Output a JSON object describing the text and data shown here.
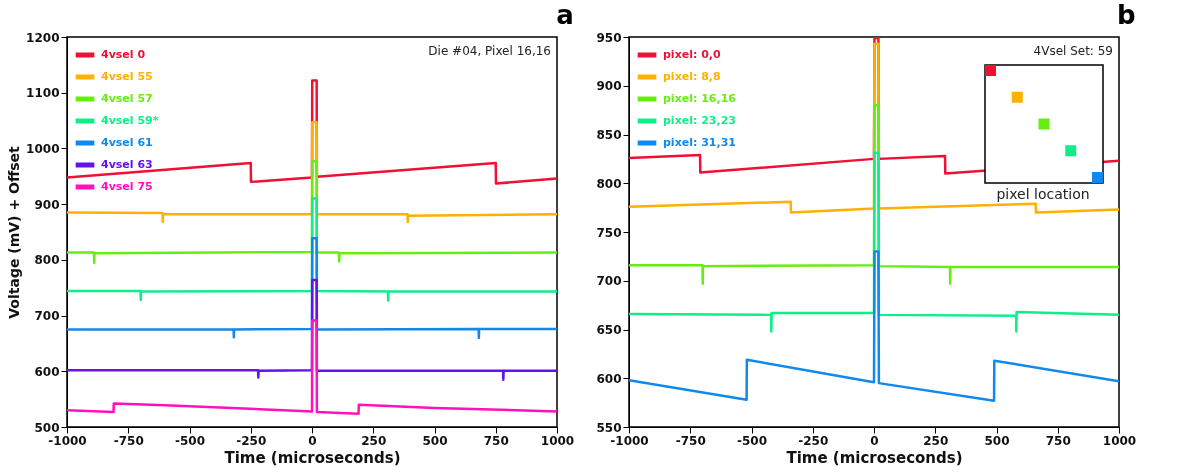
{
  "chart_data": [
    {
      "type": "line",
      "title": "a",
      "xlabel": "Time (microseconds)",
      "ylabel": "Voltage (mV) + Offset",
      "xlim": [
        -1000,
        1000
      ],
      "xticks": [
        -1000,
        -750,
        -500,
        -250,
        0,
        250,
        500,
        750,
        1000
      ],
      "ylim": [
        500,
        1200
      ],
      "yticks": [
        500,
        600,
        700,
        800,
        900,
        1000,
        1100,
        1200
      ],
      "grid": false,
      "legend": "top left",
      "annotations": [
        "Die #04, Pixel 16,16"
      ],
      "series": [
        {
          "name": "4vsel 0",
          "color": "#ee1133",
          "x": [
            -1000,
            -250,
            -249,
            0,
            1,
            19,
            20,
            750,
            751,
            1000
          ],
          "values": [
            948,
            974,
            940,
            948,
            1122,
            1122,
            949,
            974,
            937,
            946
          ]
        },
        {
          "name": "4vsel 55",
          "color": "#ffb000",
          "x": [
            -1000,
            -610,
            -609,
            -608,
            0,
            1,
            19,
            20,
            390,
            391,
            392,
            1000
          ],
          "values": [
            885,
            884,
            868,
            882,
            882,
            1047,
            1047,
            882,
            882,
            868,
            879,
            882
          ]
        },
        {
          "name": "4vsel 57",
          "color": "#66ee11",
          "x": [
            -1000,
            -890,
            -889,
            -888,
            0,
            1,
            19,
            20,
            110,
            111,
            112,
            1000
          ],
          "values": [
            813,
            813,
            795,
            812,
            814,
            977,
            977,
            813,
            813,
            797,
            812,
            813
          ]
        },
        {
          "name": "4vsel 59*",
          "color": "#11ee88",
          "x": [
            -1000,
            -700,
            -699,
            -698,
            0,
            1,
            19,
            20,
            310,
            311,
            312,
            1000
          ],
          "values": [
            744,
            744,
            728,
            743,
            744,
            910,
            910,
            744,
            743,
            727,
            743,
            743
          ]
        },
        {
          "name": "4vsel 61",
          "color": "#1188ee",
          "x": [
            -1000,
            -320,
            -319,
            -318,
            0,
            1,
            19,
            20,
            680,
            681,
            682,
            1000
          ],
          "values": [
            675,
            675,
            661,
            675,
            676,
            839,
            839,
            675,
            676,
            660,
            676,
            676
          ]
        },
        {
          "name": "4vsel 63",
          "color": "#6611ee",
          "x": [
            -1000,
            -220,
            -219,
            -218,
            0,
            1,
            19,
            20,
            780,
            781,
            782,
            1000
          ],
          "values": [
            602,
            602,
            589,
            601,
            602,
            764,
            764,
            601,
            601,
            585,
            601,
            601
          ]
        },
        {
          "name": "4vsel 75",
          "color": "#ff11bb",
          "x": [
            -1000,
            -810,
            -809,
            -600,
            0,
            1,
            19,
            20,
            190,
            191,
            500,
            1000
          ],
          "values": [
            530,
            527,
            542,
            539,
            528,
            691,
            691,
            527,
            524,
            540,
            534,
            528
          ]
        }
      ]
    },
    {
      "type": "line",
      "title": "b",
      "xlabel": "Time (microseconds)",
      "xlim": [
        -1000,
        1000
      ],
      "xticks": [
        -1000,
        -750,
        -500,
        -250,
        0,
        250,
        500,
        750,
        1000
      ],
      "ylim": [
        550,
        950
      ],
      "yticks": [
        550,
        600,
        650,
        700,
        750,
        800,
        850,
        900,
        950
      ],
      "grid": false,
      "legend": "top left",
      "annotations": [
        "4Vsel Set: 59",
        "pixel location"
      ],
      "series": [
        {
          "name": "pixel: 0,0",
          "color": "#ee1133",
          "x": [
            -1000,
            -710,
            -709,
            0,
            2,
            18,
            20,
            290,
            291,
            1000
          ],
          "values": [
            826,
            829,
            811,
            825,
            949,
            949,
            825,
            828,
            810,
            823
          ]
        },
        {
          "name": "pixel: 8,8",
          "color": "#ffb000",
          "x": [
            -1000,
            -340,
            -339,
            0,
            2,
            18,
            20,
            660,
            661,
            1000
          ],
          "values": [
            776,
            781,
            770,
            774,
            943,
            943,
            774,
            779,
            770,
            773
          ]
        },
        {
          "name": "pixel: 16,16",
          "color": "#66ee11",
          "x": [
            -1000,
            -700,
            -699,
            -698,
            0,
            2,
            18,
            20,
            310,
            311,
            312,
            1000
          ],
          "values": [
            716,
            716,
            697,
            715,
            716,
            880,
            880,
            715,
            714,
            697,
            714,
            714
          ]
        },
        {
          "name": "pixel: 23,23",
          "color": "#11ee88",
          "x": [
            -1000,
            -420,
            -419,
            -418,
            0,
            2,
            18,
            20,
            580,
            581,
            582,
            1000
          ],
          "values": [
            666,
            665,
            648,
            667,
            667,
            831,
            831,
            665,
            664,
            648,
            668,
            665
          ]
        },
        {
          "name": "pixel: 31,31",
          "color": "#1188ee",
          "x": [
            -1000,
            -520,
            -519,
            0,
            2,
            18,
            20,
            490,
            491,
            1000
          ],
          "values": [
            598,
            578,
            619,
            596,
            730,
            730,
            595,
            577,
            618,
            597
          ]
        }
      ]
    }
  ]
}
